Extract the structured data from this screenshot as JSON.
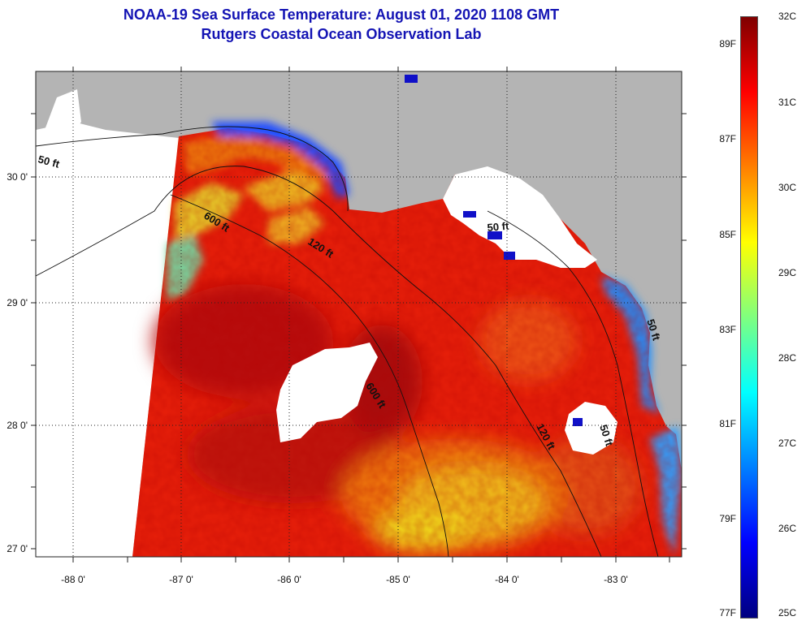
{
  "title": {
    "line1": "NOAA-19 Sea Surface Temperature:  August 01, 2020 1108 GMT",
    "line2": "Rutgers Coastal Ocean Observation Lab"
  },
  "axes": {
    "lat_labels": [
      "30 0'",
      "29 0'",
      "28 0'",
      "27 0'"
    ],
    "lon_labels": [
      "-88 0'",
      "-87 0'",
      "-86 0'",
      "-85 0'",
      "-84 0'",
      "-83 0'"
    ]
  },
  "contours": [
    "50 ft",
    "600 ft",
    "120 ft",
    "50 ft",
    "600 ft",
    "120 ft",
    "50 ft",
    "50 ft"
  ],
  "colorbar": {
    "fahrenheit": [
      "89F",
      "87F",
      "85F",
      "83F",
      "81F",
      "79F",
      "77F"
    ],
    "celsius": [
      "32C",
      "31C",
      "30C",
      "29C",
      "28C",
      "27C",
      "26C",
      "25C"
    ]
  },
  "colors": {
    "title": "#1414b4",
    "land": "#b4b4b4",
    "cloud": "#ffffff",
    "sst_warm": "#e8200a",
    "sst_hot": "#b80f0f",
    "sst_mid": "#f07a10",
    "sst_cool": "#f2e21e"
  }
}
